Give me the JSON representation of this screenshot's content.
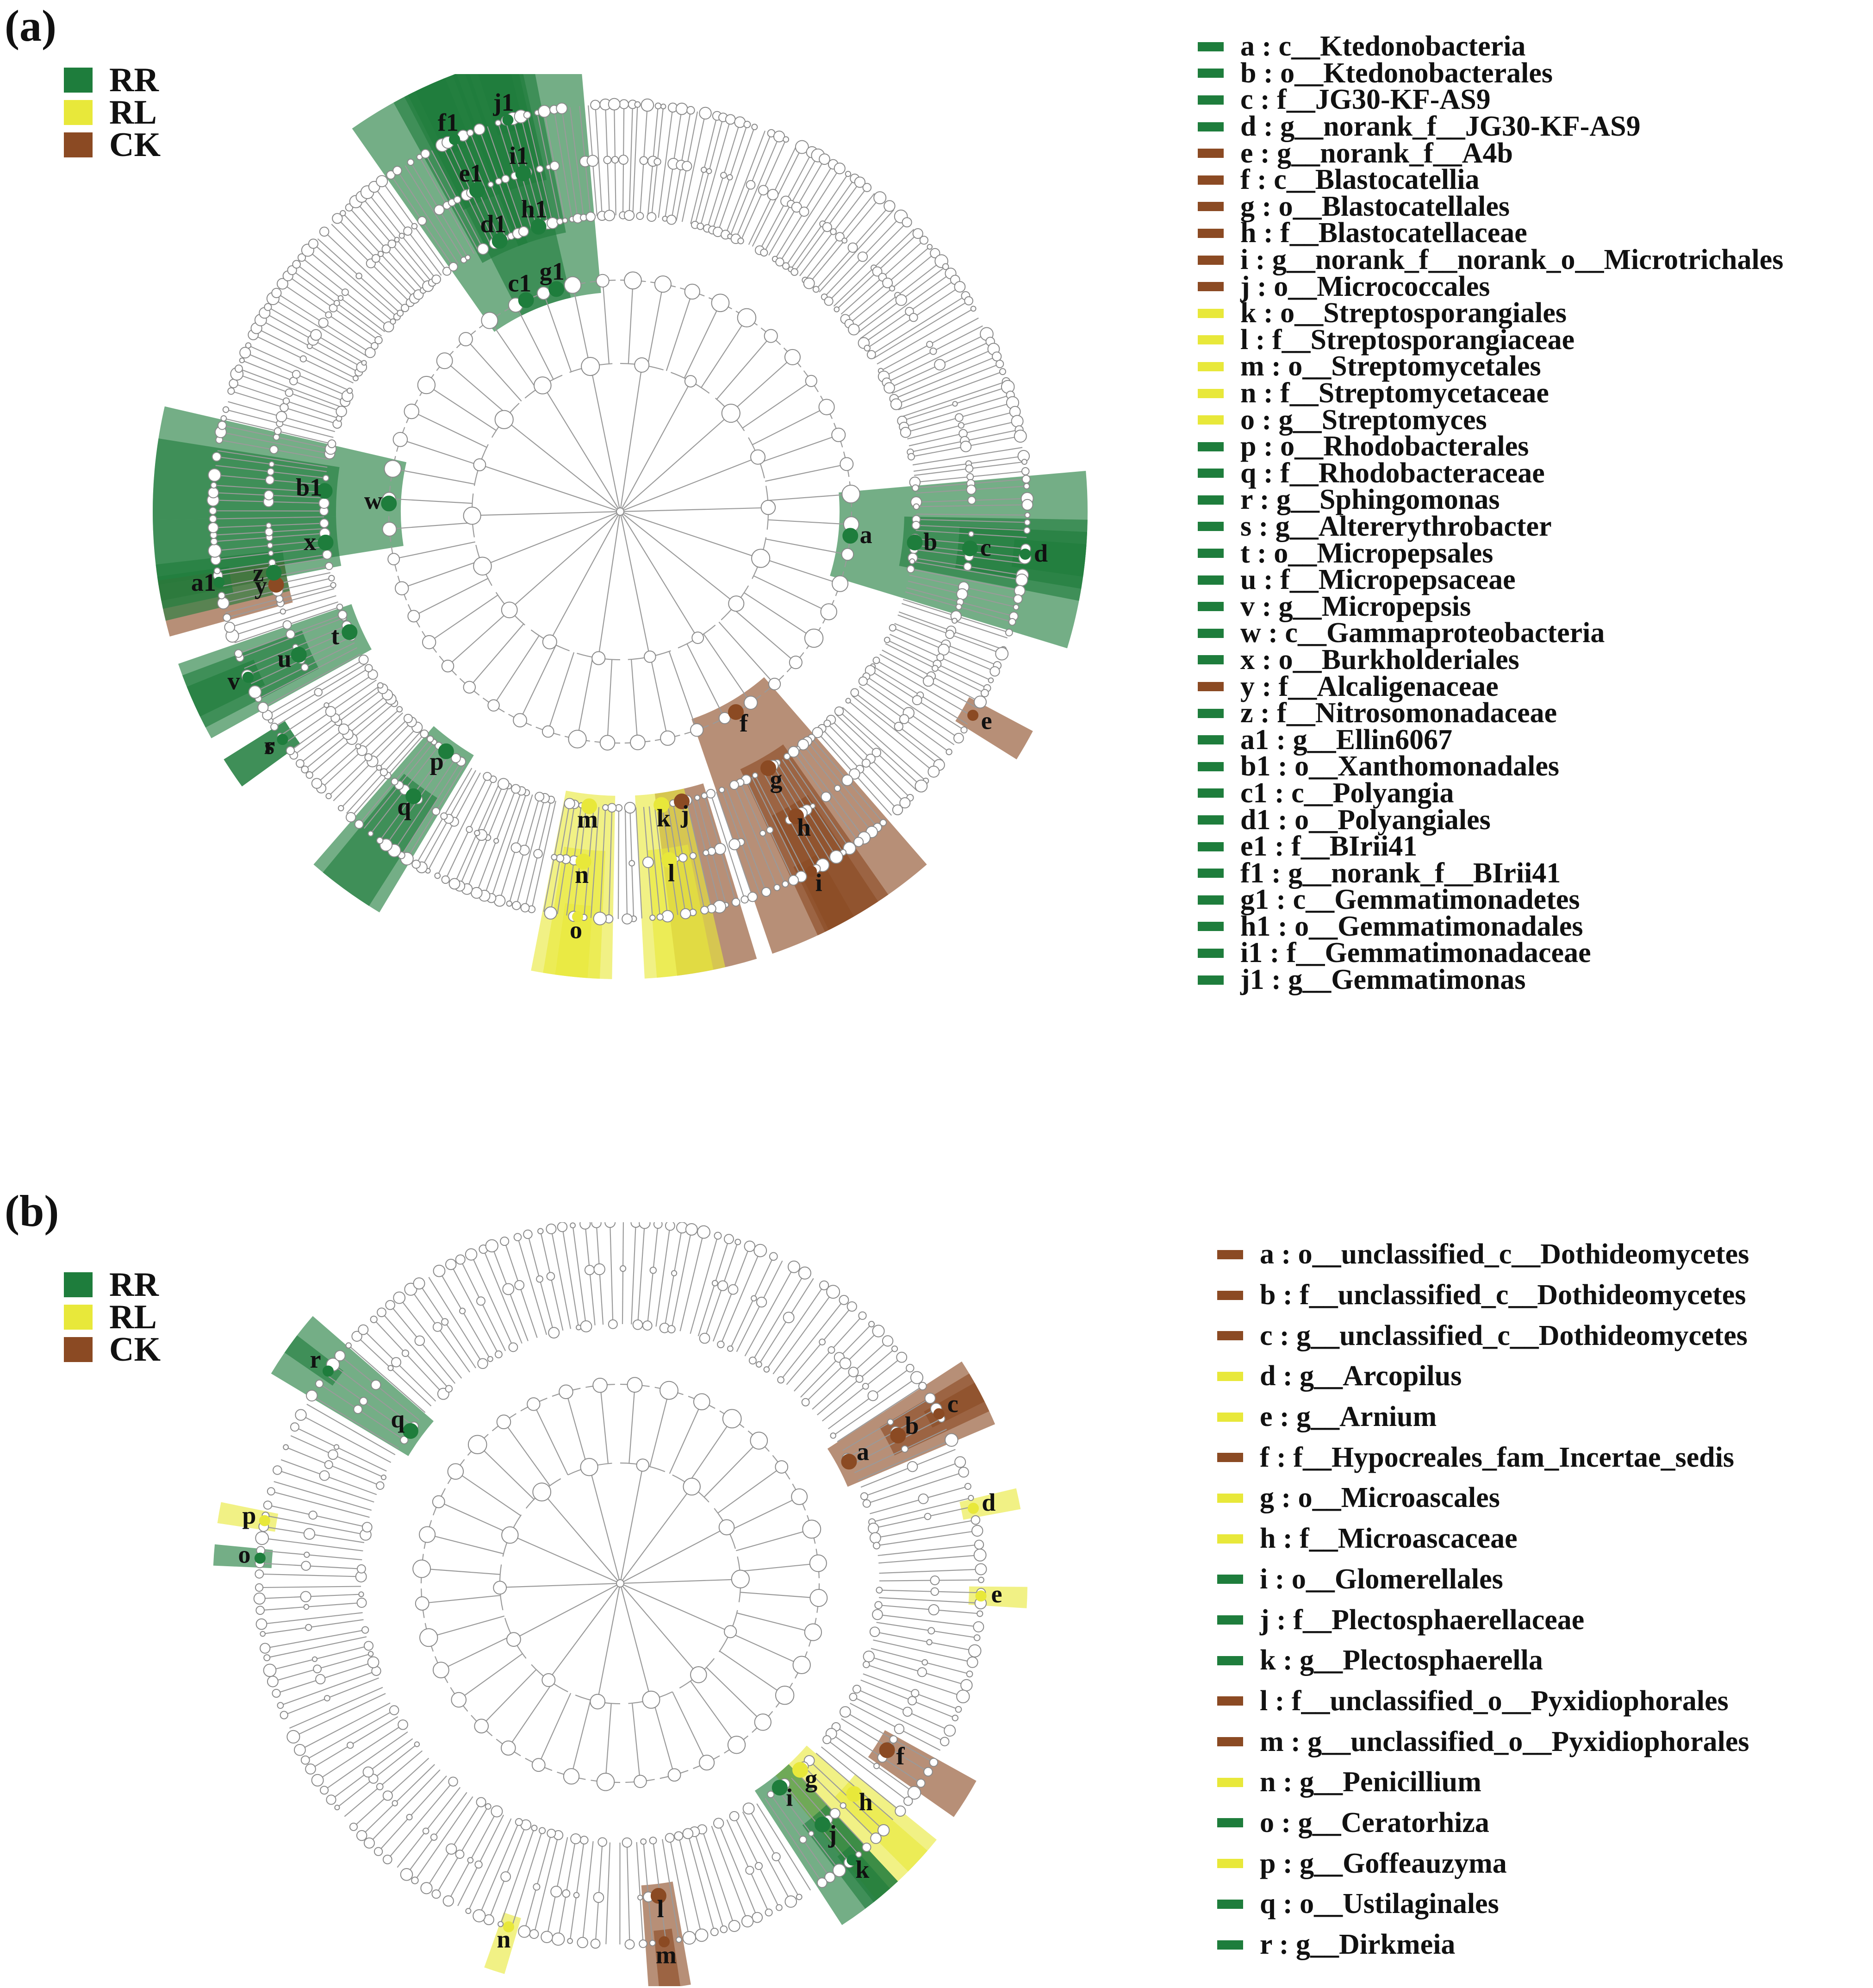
{
  "colors": {
    "RR": "#1e7d3c",
    "RL": "#e8e83a",
    "CK": "#8b4a23",
    "node": "#ffffff",
    "edge": "#9a9a9a"
  },
  "panel_a": {
    "label": "(a)",
    "groups": [
      {
        "name": "RR",
        "color": "#1e7d3c"
      },
      {
        "name": "RL",
        "color": "#e8e83a"
      },
      {
        "name": "CK",
        "color": "#8b4a23"
      }
    ],
    "taxa": [
      {
        "code": "a",
        "text": "a : c__Ktedonobacteria",
        "group": "RR",
        "angle": 96,
        "level": 2
      },
      {
        "code": "b",
        "text": "b : o__Ktedonobacterales",
        "group": "RR",
        "angle": 96,
        "level": 3
      },
      {
        "code": "c",
        "text": "c : f__JG30-KF-AS9",
        "group": "RR",
        "angle": 96,
        "level": 4
      },
      {
        "code": "d",
        "text": "d : g__norank_f__JG30-KF-AS9",
        "group": "RR",
        "angle": 96,
        "level": 5
      },
      {
        "code": "e",
        "text": "e : g__norank_f__A4b",
        "group": "CK",
        "angle": 120,
        "level": 5
      },
      {
        "code": "f",
        "text": "f : c__Blastocatellia",
        "group": "CK",
        "angle": 150,
        "level": 2
      },
      {
        "code": "g",
        "text": "g : o__Blastocatellales",
        "group": "CK",
        "angle": 150,
        "level": 3
      },
      {
        "code": "h",
        "text": "h : f__Blastocatellaceae",
        "group": "CK",
        "angle": 150,
        "level": 4
      },
      {
        "code": "i",
        "text": "i : g__norank_f__norank_o__Microtrichales",
        "group": "CK",
        "angle": 152,
        "level": 5
      },
      {
        "code": "j",
        "text": "j : o__Micrococcales",
        "group": "CK",
        "angle": 168,
        "level": 3
      },
      {
        "code": "k",
        "text": "k : o__Streptosporangiales",
        "group": "RL",
        "angle": 172,
        "level": 3
      },
      {
        "code": "l",
        "text": "l : f__Streptosporangiaceae",
        "group": "RL",
        "angle": 172,
        "level": 4
      },
      {
        "code": "m",
        "text": "m : o__Streptomycetales",
        "group": "RL",
        "angle": 186,
        "level": 3
      },
      {
        "code": "n",
        "text": "n : f__Streptomycetaceae",
        "group": "RL",
        "angle": 186,
        "level": 4
      },
      {
        "code": "o",
        "text": "o : g__Streptomyces",
        "group": "RL",
        "angle": 186,
        "level": 5
      },
      {
        "code": "p",
        "text": "p : o__Rhodobacterales",
        "group": "RR",
        "angle": 216,
        "level": 3
      },
      {
        "code": "q",
        "text": "q : f__Rhodobacteraceae",
        "group": "RR",
        "angle": 216,
        "level": 4
      },
      {
        "code": "r",
        "text": "r : g__Sphingomonas",
        "group": "RR",
        "angle": 236,
        "level": 5
      },
      {
        "code": "s",
        "text": "s : g__Altererythrobacter",
        "group": "RR",
        "angle": 236,
        "level": 5
      },
      {
        "code": "t",
        "text": "t : o__Micropepsales",
        "group": "RR",
        "angle": 246,
        "level": 3
      },
      {
        "code": "u",
        "text": "u : f__Micropepsaceae",
        "group": "RR",
        "angle": 246,
        "level": 4
      },
      {
        "code": "v",
        "text": "v : g__Micropepsis",
        "group": "RR",
        "angle": 246,
        "level": 5
      },
      {
        "code": "w",
        "text": "w : c__Gammaproteobacteria",
        "group": "RR",
        "angle": 272,
        "level": 2
      },
      {
        "code": "x",
        "text": "x : o__Burkholderiales",
        "group": "RR",
        "angle": 264,
        "level": 3
      },
      {
        "code": "y",
        "text": "y : f__Alcaligenaceae",
        "group": "CK",
        "angle": 258,
        "level": 4
      },
      {
        "code": "z",
        "text": "z : f__Nitrosomonadaceae",
        "group": "RR",
        "angle": 260,
        "level": 4
      },
      {
        "code": "a1",
        "text": "a1 : g__Ellin6067",
        "group": "RR",
        "angle": 260,
        "level": 5
      },
      {
        "code": "b1",
        "text": "b1 : o__Xanthomonadales",
        "group": "RR",
        "angle": 274,
        "level": 3
      },
      {
        "code": "c1",
        "text": "c1 : c__Polyangia",
        "group": "RR",
        "angle": 336,
        "level": 2
      },
      {
        "code": "d1",
        "text": "d1 : o__Polyangiales",
        "group": "RR",
        "angle": 336,
        "level": 3
      },
      {
        "code": "e1",
        "text": "e1 : f__BIrii41",
        "group": "RR",
        "angle": 336,
        "level": 4
      },
      {
        "code": "f1",
        "text": "f1 : g__norank_f__BIrii41",
        "group": "RR",
        "angle": 336,
        "level": 5
      },
      {
        "code": "g1",
        "text": "g1 : c__Gemmatimonadetes",
        "group": "RR",
        "angle": 344,
        "level": 2
      },
      {
        "code": "h1",
        "text": "h1 : o__Gemmatimonadales",
        "group": "RR",
        "angle": 344,
        "level": 3
      },
      {
        "code": "i1",
        "text": "i1 : f__Gemmatimonadaceae",
        "group": "RR",
        "angle": 344,
        "level": 4
      },
      {
        "code": "j1",
        "text": "j1 : g__Gemmatimonas",
        "group": "RR",
        "angle": 344,
        "level": 5
      }
    ]
  },
  "panel_b": {
    "label": "(b)",
    "groups": [
      {
        "name": "RR",
        "color": "#1e7d3c"
      },
      {
        "name": "RL",
        "color": "#e8e83a"
      },
      {
        "name": "CK",
        "color": "#8b4a23"
      }
    ],
    "taxa": [
      {
        "code": "a",
        "text": "a : o__unclassified_c__Dothideomycetes",
        "group": "CK",
        "angle": 62,
        "level": 3
      },
      {
        "code": "b",
        "text": "b : f__unclassified_c__Dothideomycetes",
        "group": "CK",
        "angle": 62,
        "level": 4
      },
      {
        "code": "c",
        "text": "c : g__unclassified_c__Dothideomycetes",
        "group": "CK",
        "angle": 62,
        "level": 5
      },
      {
        "code": "d",
        "text": "d : g__Arcopilus",
        "group": "RL",
        "angle": 78,
        "level": 5
      },
      {
        "code": "e",
        "text": "e : g__Arnium",
        "group": "RL",
        "angle": 92,
        "level": 5
      },
      {
        "code": "f",
        "text": "f : f__Hypocreales_fam_Incertae_sedis",
        "group": "CK",
        "angle": 122,
        "level": 4
      },
      {
        "code": "g",
        "text": "g : o__Microascales",
        "group": "RL",
        "angle": 136,
        "level": 3
      },
      {
        "code": "h",
        "text": "h : f__Microascaceae",
        "group": "RL",
        "angle": 132,
        "level": 4
      },
      {
        "code": "i",
        "text": "i : o__Glomerellales",
        "group": "RR",
        "angle": 142,
        "level": 3
      },
      {
        "code": "j",
        "text": "j : f__Plectosphaerellaceae",
        "group": "RR",
        "angle": 140,
        "level": 4
      },
      {
        "code": "k",
        "text": "k : g__Plectosphaerella",
        "group": "RR",
        "angle": 140,
        "level": 5
      },
      {
        "code": "l",
        "text": "l : f__unclassified_o__Pyxidiophorales",
        "group": "CK",
        "angle": 173,
        "level": 4
      },
      {
        "code": "m",
        "text": "m : g__unclassified_o__Pyxidiophorales",
        "group": "CK",
        "angle": 173,
        "level": 5
      },
      {
        "code": "n",
        "text": "n : g__Penicillium",
        "group": "RL",
        "angle": 198,
        "level": 5
      },
      {
        "code": "o",
        "text": "o : g__Ceratorhiza",
        "group": "RR",
        "angle": 274,
        "level": 5
      },
      {
        "code": "p",
        "text": "p : g__Goffeauzyma",
        "group": "RL",
        "angle": 280,
        "level": 5
      },
      {
        "code": "q",
        "text": "q : o__Ustilaginales",
        "group": "RR",
        "angle": 306,
        "level": 3
      },
      {
        "code": "r",
        "text": "r : g__Dirkmeia",
        "group": "RR",
        "angle": 306,
        "level": 5
      }
    ]
  }
}
